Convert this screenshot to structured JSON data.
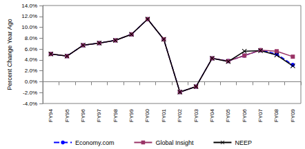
{
  "chart_data": {
    "type": "line",
    "y_label": "Percent Change Year Ago",
    "categories": [
      "FY94",
      "FY95",
      "FY96",
      "FY97",
      "FY98",
      "FY99",
      "FY00",
      "FY01",
      "FY02",
      "FY03",
      "FY04",
      "FY05",
      "FY06",
      "FY07",
      "FY08",
      "FY09"
    ],
    "series": [
      {
        "name": "Economy.com",
        "color": "#0000ff",
        "marker": "circle",
        "line_style": "dashed",
        "values": [
          5.1,
          4.7,
          6.7,
          7.1,
          7.6,
          8.7,
          11.5,
          7.8,
          -1.9,
          -0.9,
          4.3,
          3.8,
          4.8,
          5.8,
          5.1,
          3.1
        ]
      },
      {
        "name": "Global Insight",
        "color": "#993366",
        "marker": "square",
        "line_style": "solid",
        "values": [
          5.1,
          4.7,
          6.7,
          7.1,
          7.6,
          8.7,
          11.5,
          7.8,
          -1.9,
          -0.9,
          4.3,
          3.8,
          4.8,
          5.8,
          5.6,
          4.6
        ]
      },
      {
        "name": "NEEP",
        "color": "#000000",
        "marker": "cross",
        "line_style": "solid",
        "values": [
          5.1,
          4.7,
          6.7,
          7.1,
          7.6,
          8.7,
          11.5,
          7.8,
          -1.9,
          -0.9,
          4.3,
          3.7,
          5.6,
          5.7,
          4.9,
          2.9
        ]
      }
    ],
    "ylim": [
      -4,
      14
    ],
    "yticks": [
      {
        "value": -4,
        "label": "-4.0%"
      },
      {
        "value": -2,
        "label": "-2.0%"
      },
      {
        "value": 0,
        "label": "0.0%"
      },
      {
        "value": 2,
        "label": "2.0%"
      },
      {
        "value": 4,
        "label": "4.0%"
      },
      {
        "value": 6,
        "label": "6.0%"
      },
      {
        "value": 8,
        "label": "8.0%"
      },
      {
        "value": 10,
        "label": "10.0%"
      },
      {
        "value": 12,
        "label": "12.0%"
      },
      {
        "value": 14,
        "label": "14.0%"
      }
    ],
    "grid": false,
    "legend": "bottom"
  }
}
